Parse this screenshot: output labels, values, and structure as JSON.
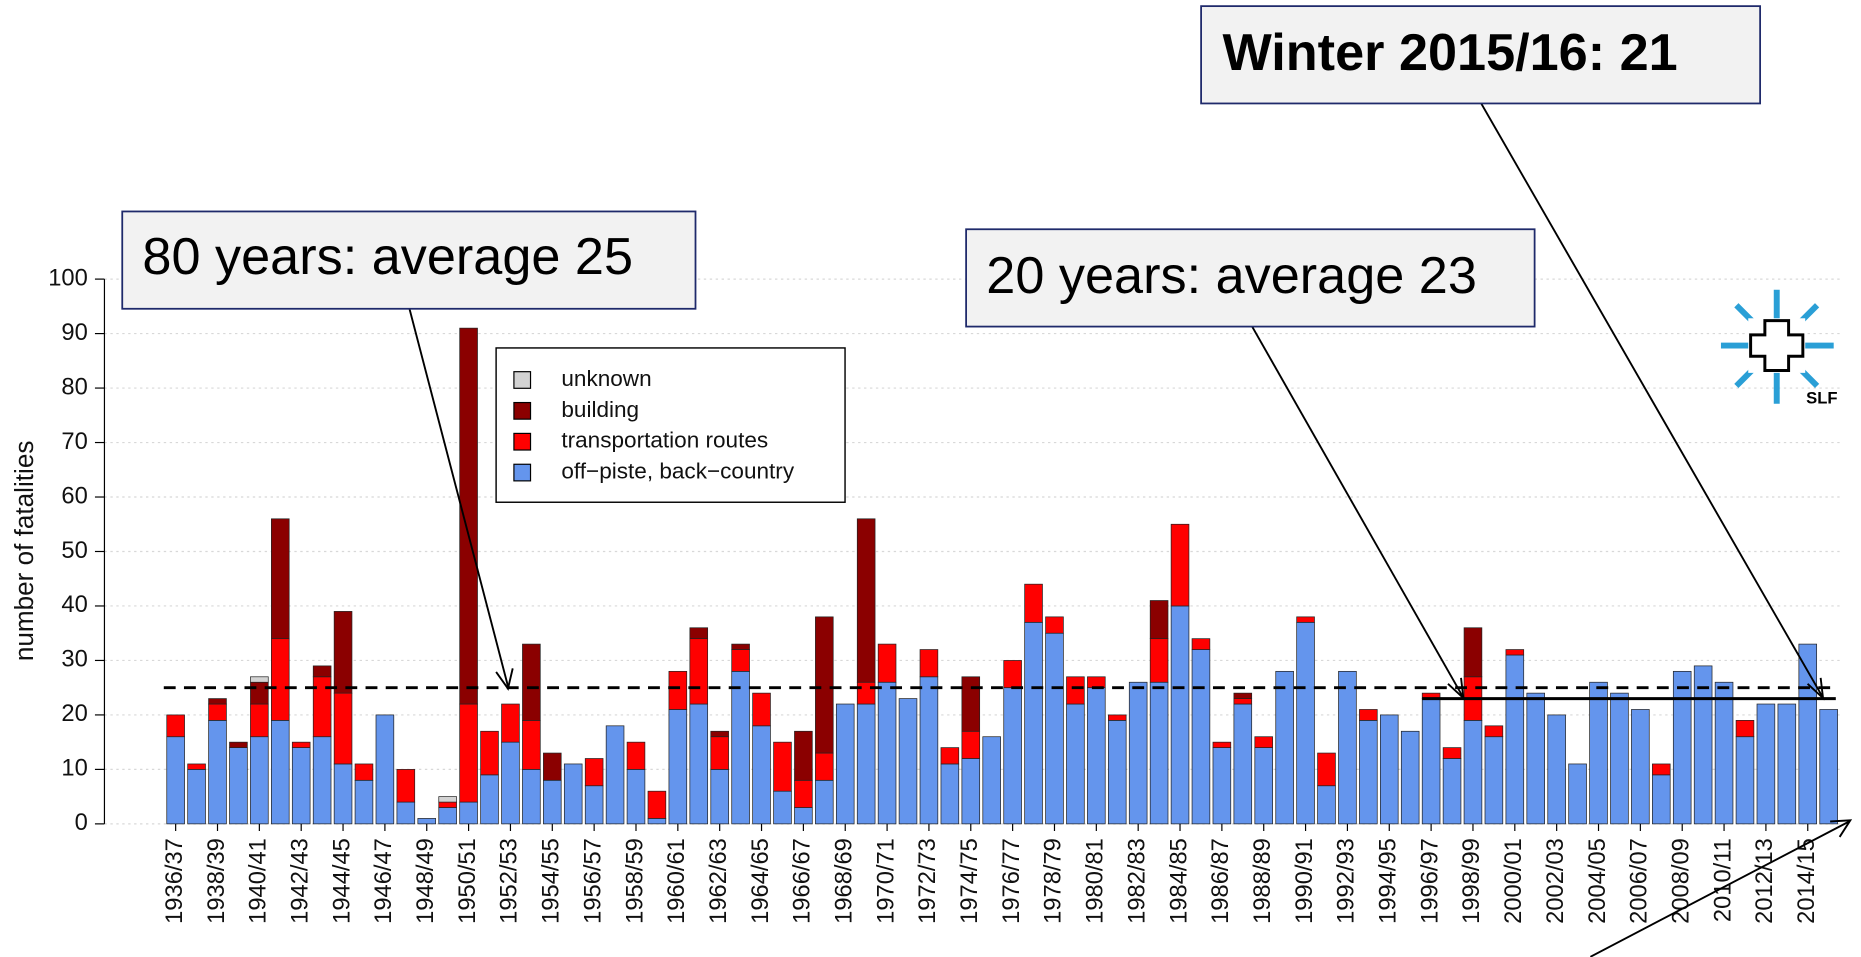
{
  "chart_data": {
    "type": "stacked_bar",
    "y_label": "number of fatalities",
    "categories": [
      "1936/37",
      null,
      "1938/39",
      null,
      "1940/41",
      null,
      "1942/43",
      null,
      "1944/45",
      null,
      "1946/47",
      null,
      "1948/49",
      null,
      "1950/51",
      null,
      "1952/53",
      null,
      "1954/55",
      null,
      "1956/57",
      null,
      "1958/59",
      null,
      "1960/61",
      null,
      "1962/63",
      null,
      "1964/65",
      null,
      "1966/67",
      null,
      "1968/69",
      null,
      "1970/71",
      null,
      "1972/73",
      null,
      "1974/75",
      null,
      "1976/77",
      null,
      "1978/79",
      null,
      "1980/81",
      null,
      "1982/83",
      null,
      "1984/85",
      null,
      "1986/87",
      null,
      "1988/89",
      null,
      "1990/91",
      null,
      "1992/93",
      null,
      "1994/95",
      null,
      "1996/97",
      null,
      "1998/99",
      null,
      "2000/01",
      null,
      "2002/03",
      null,
      "2004/05",
      null,
      "2006/07",
      null,
      "2008/09",
      null,
      "2010/11",
      null,
      "2012/13",
      null,
      "2014/15",
      null
    ],
    "series": [
      {
        "name": "off−piste, back−country",
        "color": "#6495ed",
        "values": [
          16,
          10,
          19,
          14,
          16,
          19,
          14,
          16,
          11,
          8,
          20,
          4,
          1,
          3,
          4,
          9,
          15,
          10,
          8,
          11,
          7,
          18,
          10,
          1,
          21,
          22,
          10,
          28,
          18,
          6,
          3,
          8,
          22,
          22,
          26,
          23,
          27,
          11,
          12,
          16,
          25,
          37,
          35,
          22,
          25,
          19,
          26,
          26,
          40,
          32,
          14,
          22,
          14,
          28,
          37,
          7,
          28,
          19,
          20,
          17,
          23,
          12,
          19,
          16,
          31,
          24,
          20,
          11,
          26,
          24,
          21,
          9,
          28,
          29,
          26,
          16,
          22,
          22,
          33,
          21
        ]
      },
      {
        "name": "transportation routes",
        "color": "#ff0000",
        "values": [
          4,
          1,
          3,
          0,
          6,
          15,
          1,
          11,
          13,
          3,
          0,
          6,
          0,
          1,
          18,
          8,
          7,
          9,
          0,
          0,
          5,
          0,
          5,
          5,
          7,
          12,
          6,
          4,
          6,
          9,
          5,
          5,
          0,
          4,
          7,
          0,
          5,
          3,
          5,
          0,
          5,
          7,
          3,
          5,
          2,
          1,
          0,
          8,
          15,
          2,
          1,
          1,
          2,
          0,
          1,
          6,
          0,
          2,
          0,
          0,
          1,
          2,
          8,
          2,
          1,
          0,
          0,
          0,
          0,
          0,
          0,
          2,
          0,
          0,
          0,
          3,
          0,
          0,
          0,
          0
        ]
      },
      {
        "name": "building",
        "color": "#8b0000",
        "values": [
          0,
          0,
          1,
          1,
          4,
          22,
          0,
          2,
          15,
          0,
          0,
          0,
          0,
          0,
          69,
          0,
          0,
          14,
          5,
          0,
          0,
          0,
          0,
          0,
          0,
          2,
          1,
          1,
          0,
          0,
          9,
          25,
          0,
          30,
          0,
          0,
          0,
          0,
          10,
          0,
          0,
          0,
          0,
          0,
          0,
          0,
          0,
          7,
          0,
          0,
          0,
          1,
          0,
          0,
          0,
          0,
          0,
          0,
          0,
          0,
          0,
          0,
          9,
          0,
          0,
          0,
          0,
          0,
          0,
          0,
          0,
          0,
          0,
          0,
          0,
          0,
          0,
          0,
          0,
          0
        ]
      },
      {
        "name": "unknown",
        "color": "#d3d3d3",
        "values": [
          0,
          0,
          0,
          0,
          1,
          0,
          0,
          0,
          0,
          0,
          0,
          0,
          0,
          1,
          0,
          0,
          0,
          0,
          0,
          0,
          0,
          0,
          0,
          0,
          0,
          0,
          0,
          0,
          0,
          0,
          0,
          0,
          0,
          0,
          0,
          0,
          0,
          0,
          0,
          0,
          0,
          0,
          0,
          0,
          0,
          0,
          0,
          0,
          0,
          0,
          0,
          0,
          0,
          0,
          0,
          0,
          0,
          0,
          0,
          0,
          0,
          0,
          0,
          0,
          0,
          0,
          0,
          0,
          0,
          0,
          0,
          0,
          0,
          0,
          0,
          0,
          0,
          0,
          0,
          0
        ]
      }
    ],
    "ylim": [
      0,
      100
    ],
    "yticks": [
      0,
      10,
      20,
      30,
      40,
      50,
      60,
      70,
      80,
      90,
      100
    ],
    "grid": true,
    "reference_lines": [
      {
        "value": 25,
        "style": "dashed"
      },
      {
        "value": 23,
        "style": "solid",
        "start": "1996/97"
      }
    ],
    "annotations": [
      "80 years: average 25",
      "20 years: average 23",
      "Winter 2015/16: 21"
    ],
    "logo_text": "SLF"
  }
}
